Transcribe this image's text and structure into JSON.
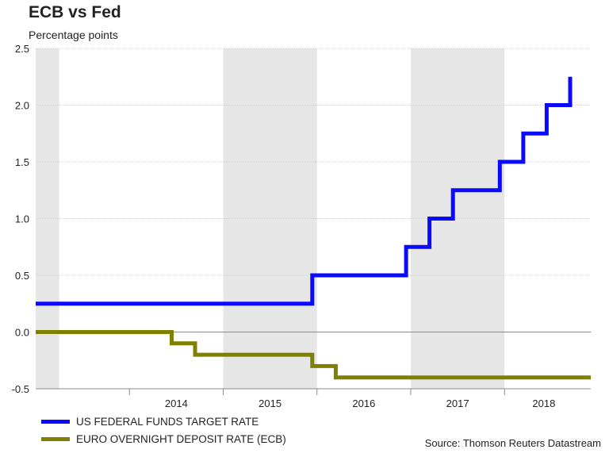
{
  "chart_data": {
    "type": "line",
    "title": "ECB vs Fed",
    "subtitle": "Percentage points",
    "ylim": [
      -0.5,
      2.5
    ],
    "y_ticks": [
      "2.5",
      "2.0",
      "1.5",
      "1.0",
      "0.5",
      "0.0",
      "-0.5"
    ],
    "y_tick_values": [
      2.5,
      2.0,
      1.5,
      1.0,
      0.5,
      0.0,
      -0.5
    ],
    "xlim": [
      2013.0,
      2018.92
    ],
    "x_ticks": [
      "2014",
      "2015",
      "2016",
      "2017",
      "2018"
    ],
    "x_tick_positions": [
      2014.5,
      2015.5,
      2016.5,
      2017.5,
      2018.42
    ],
    "shaded_years": [
      [
        2013.0,
        2013.25
      ],
      [
        2015.0,
        2016.0
      ],
      [
        2017.0,
        2018.0
      ]
    ],
    "series": [
      {
        "name": "US FEDERAL FUNDS TARGET RATE",
        "color": "#0a0aff",
        "x": [
          2013.0,
          2015.95,
          2015.95,
          2016.95,
          2016.95,
          2017.2,
          2017.2,
          2017.45,
          2017.45,
          2017.95,
          2017.95,
          2018.2,
          2018.2,
          2018.45,
          2018.45,
          2018.7,
          2018.7
        ],
        "y": [
          0.25,
          0.25,
          0.5,
          0.5,
          0.75,
          0.75,
          1.0,
          1.0,
          1.25,
          1.25,
          1.5,
          1.5,
          1.75,
          1.75,
          2.0,
          2.0,
          2.25
        ]
      },
      {
        "name": "EURO OVERNIGHT DEPOSIT RATE (ECB)",
        "color": "#808000",
        "x": [
          2013.0,
          2014.45,
          2014.45,
          2014.7,
          2014.7,
          2015.95,
          2015.95,
          2016.2,
          2016.2,
          2018.92
        ],
        "y": [
          0.0,
          0.0,
          -0.1,
          -0.1,
          -0.2,
          -0.2,
          -0.3,
          -0.3,
          -0.4,
          -0.4
        ]
      }
    ]
  },
  "source": "Source: Thomson Reuters Datastream"
}
